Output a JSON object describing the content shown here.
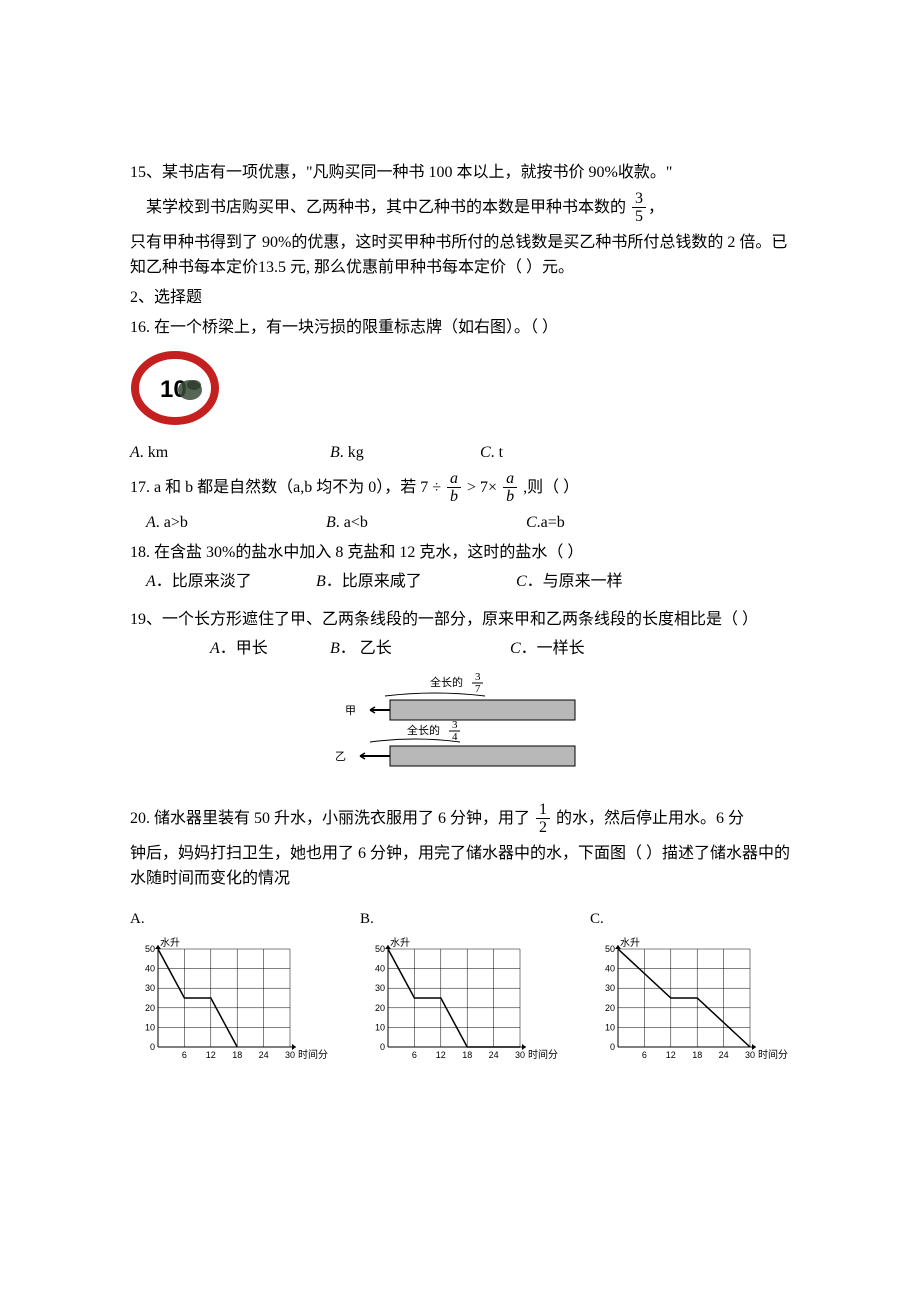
{
  "q15": {
    "line1": "15、某书店有一项优惠，\"凡购买同一种书 100 本以上，就按书价 90%收款。\"",
    "line2_pre": "某学校到书店购买甲、乙两种书，其中乙种书的本数是甲种书本数的",
    "frac_num": "3",
    "frac_den": "5",
    "line2_post": "，",
    "line3": "只有甲种书得到了 90%的优惠，这时买甲种书所付的总钱数是买乙种书所付总钱数的 2 倍。已知乙种书每本定价13.5 元,  那么优惠前甲种书每本定价（    ）元。"
  },
  "section2": "2、选择题",
  "q16": {
    "text": "16. 在一个桥梁上，有一块污损的限重标志牌（如右图）。（        ）",
    "sign_number": "10",
    "sign_border": "#c52020",
    "sign_bg": "#ffffff",
    "smudge": "#3a4a3a",
    "optA": ". km",
    "optB": ". kg",
    "optC": ". t"
  },
  "q17": {
    "pre": "17. a 和 b 都是自然数（a,b 均不为 0），若",
    "seven": "7",
    "div": "÷",
    "gt": ">",
    "frac_a": "a",
    "frac_b": "b",
    "times": "7×",
    "post": ",则（       ）",
    "optA": ". a>b",
    "optB": ". a<b",
    "optC": ".a=b"
  },
  "q18": {
    "text": "18.  在含盐 30%的盐水中加入 8 克盐和 12 克水，这时的盐水（    ）",
    "optA": "．比原来淡了",
    "optB": "．比原来咸了",
    "optC": "．与原来一样"
  },
  "q19": {
    "text": "19、一个长方形遮住了甲、乙两条线段的一部分，原来甲和乙两条线段的长度相比是（    ）",
    "optA": "．甲长",
    "optB": "．  乙长",
    "optC": "．一样长",
    "label_jia": "甲",
    "label_yi": "乙",
    "label_top": "全长的",
    "label_mid": "全长的",
    "frac_top_num": "3",
    "frac_top_den": "7",
    "frac_mid_num": "3",
    "frac_mid_den": "4"
  },
  "q20": {
    "pre": "20.        储水器里装有 50 升水，小丽洗衣服用了 6 分钟，用了",
    "frac_num": "1",
    "frac_den": "2",
    "post": "的水，然后停止用水。6 分",
    "line2": "钟后，妈妈打扫卫生，她也用了 6 分钟，用完了储水器中的水，下面图（      ）描述了储水器中的水随时间而变化的情况",
    "charts": {
      "labelA": "A.",
      "labelB": "B.",
      "labelC": "C.",
      "ylabel": "水升",
      "xlabel": "时间分",
      "yticks": [
        0,
        10,
        20,
        30,
        40,
        50
      ],
      "xticks": [
        6,
        12,
        18,
        24,
        30
      ],
      "ylim": [
        0,
        50
      ],
      "xlim": [
        0,
        30
      ],
      "grid_color": "#000000",
      "line_color": "#000000",
      "line_width": 1.5,
      "chartA_points": [
        [
          0,
          50
        ],
        [
          6,
          25
        ],
        [
          12,
          25
        ],
        [
          18,
          0
        ]
      ],
      "chartB_points": [
        [
          0,
          50
        ],
        [
          6,
          25
        ],
        [
          12,
          25
        ],
        [
          18,
          0
        ],
        [
          30,
          0
        ]
      ],
      "chartC_points": [
        [
          0,
          50
        ],
        [
          12,
          25
        ],
        [
          18,
          25
        ],
        [
          30,
          0
        ]
      ]
    }
  }
}
